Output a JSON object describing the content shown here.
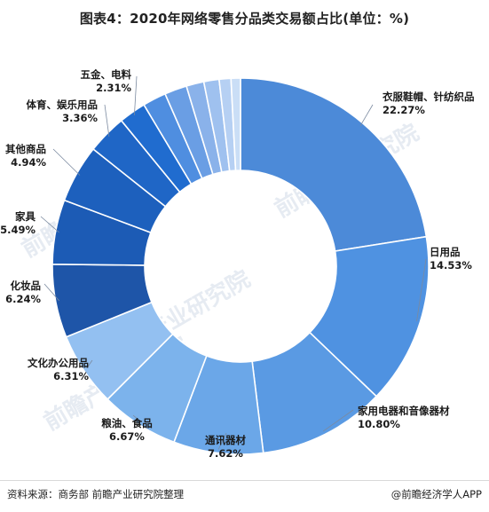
{
  "title": "图表4：2020年网络零售分品类交易额占比(单位：%)",
  "footer": {
    "source": "资料来源：商务部 前瞻产业研究院整理",
    "brand": "@前瞻经济学人APP"
  },
  "watermark": "前瞻产业研究院",
  "chart_data": {
    "type": "pie",
    "title": "图表4：2020年网络零售分品类交易额占比(单位：%)",
    "unit": "%",
    "donut": true,
    "slices": [
      {
        "label": "衣服鞋帽、针纺织品",
        "value": 22.27,
        "value_label": "22.27%",
        "color": "#4c8ad8"
      },
      {
        "label": "日用品",
        "value": 14.53,
        "value_label": "14.53%",
        "color": "#4f92e1"
      },
      {
        "label": "家用电器和音像器材",
        "value": 10.8,
        "value_label": "10.80%",
        "color": "#5a9ae3"
      },
      {
        "label": "通讯器材",
        "value": 7.62,
        "value_label": "7.62%",
        "color": "#6ba7e8"
      },
      {
        "label": "粮油、食品",
        "value": 6.67,
        "value_label": "6.67%",
        "color": "#7cb3ec"
      },
      {
        "label": "文化办公用品",
        "value": 6.31,
        "value_label": "6.31%",
        "color": "#93c0f1"
      },
      {
        "label": "化妆品",
        "value": 6.24,
        "value_label": "6.24%",
        "color": "#1e55a8"
      },
      {
        "label": "家具",
        "value": 5.49,
        "value_label": "5.49%",
        "color": "#1c5bb5"
      },
      {
        "label": "其他商品",
        "value": 4.94,
        "value_label": "4.94%",
        "color": "#1d60bd"
      },
      {
        "label": "体育、娱乐用品",
        "value": 3.36,
        "value_label": "3.36%",
        "color": "#1f66c6"
      },
      {
        "label": "五金、电料",
        "value": 2.31,
        "value_label": "2.31%",
        "color": "#206ccf"
      },
      {
        "label": "",
        "value": 2.0,
        "value_label": "",
        "color": "#4f8ee0"
      },
      {
        "label": "",
        "value": 1.9,
        "value_label": "",
        "color": "#6a9ee4"
      },
      {
        "label": "",
        "value": 1.5,
        "value_label": "",
        "color": "#8ab2ea"
      },
      {
        "label": "",
        "value": 1.3,
        "value_label": "",
        "color": "#9fc1ef"
      },
      {
        "label": "",
        "value": 1.0,
        "value_label": "",
        "color": "#b6d0f3"
      },
      {
        "label": "",
        "value": 0.8,
        "value_label": "",
        "color": "#cadef6"
      }
    ]
  }
}
